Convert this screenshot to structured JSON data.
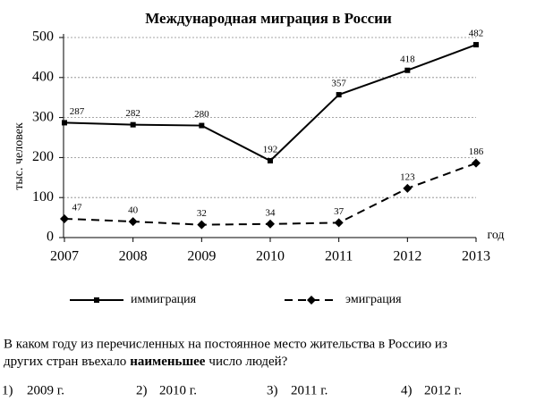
{
  "chart_data": {
    "type": "line",
    "title": "Международная миграция в России",
    "categories": [
      "2007",
      "2008",
      "2009",
      "2010",
      "2011",
      "2012",
      "2013"
    ],
    "series": [
      {
        "name": "иммиграция",
        "color": "#000000",
        "line": "solid",
        "marker": "square",
        "values": [
          287,
          282,
          280,
          192,
          357,
          418,
          482
        ]
      },
      {
        "name": "эмиграция",
        "color": "#000000",
        "line": "dashed",
        "marker": "diamond",
        "values": [
          47,
          40,
          32,
          34,
          37,
          123,
          186
        ]
      }
    ],
    "ylabel": "тыс. человек",
    "xlabel": "год",
    "ylim": [
      0,
      500
    ],
    "yticks": [
      0,
      100,
      200,
      300,
      400,
      500
    ],
    "grid": true
  },
  "question": {
    "line1": "В каком году из перечисленных на постоянное место жительства в Россию из",
    "line2_start": "других стран въехало",
    "line2_bold": "наименьшее",
    "line2_end": "число людей?"
  },
  "options": [
    {
      "number": "1)",
      "text": "2009 г."
    },
    {
      "number": "2)",
      "text": "2010 г."
    },
    {
      "number": "3)",
      "text": "2011 г."
    },
    {
      "number": "4)",
      "text": "2012 г."
    }
  ]
}
